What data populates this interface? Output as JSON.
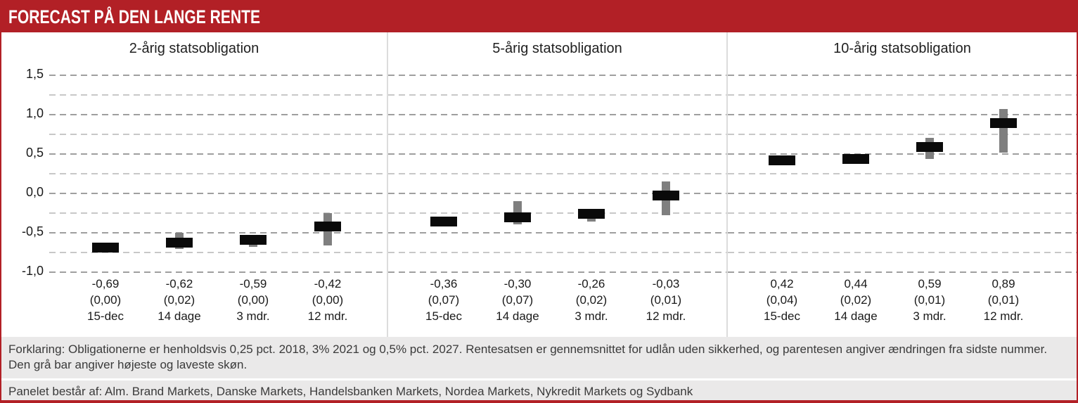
{
  "header": {
    "title": "FORECAST PÅ DEN LANGE RENTE"
  },
  "y_axis": {
    "major_ticks": [
      {
        "v": 1.5,
        "label": "1,5"
      },
      {
        "v": 1.0,
        "label": "1,0"
      },
      {
        "v": 0.5,
        "label": "0,5"
      },
      {
        "v": 0.0,
        "label": "0,0"
      },
      {
        "v": -0.5,
        "label": "-0,5"
      },
      {
        "v": -1.0,
        "label": "-1,0"
      }
    ],
    "grid_values": [
      1.5,
      1.25,
      1.0,
      0.75,
      0.5,
      0.25,
      0.0,
      -0.25,
      -0.5,
      -0.75,
      -1.0
    ]
  },
  "chart_data": [
    {
      "type": "range-bar",
      "title": "2-årig statsobligation",
      "ylim": [
        -1.0,
        1.5
      ],
      "grid_step": 0.25,
      "points": [
        {
          "period": "15-dec",
          "value": -0.69,
          "value_label": "-0,69",
          "change_label": "(0,00)",
          "range_high": null,
          "range_low": null
        },
        {
          "period": "14 dage",
          "value": -0.62,
          "value_label": "-0,62",
          "change_label": "(0,02)",
          "range_high": -0.5,
          "range_low": -0.7
        },
        {
          "period": "3 mdr.",
          "value": -0.59,
          "value_label": "-0,59",
          "change_label": "(0,00)",
          "range_high": -0.56,
          "range_low": -0.68
        },
        {
          "period": "12 mdr.",
          "value": -0.42,
          "value_label": "-0,42",
          "change_label": "(0,00)",
          "range_high": -0.25,
          "range_low": -0.66
        }
      ]
    },
    {
      "type": "range-bar",
      "title": "5-årig statsobligation",
      "ylim": [
        -1.0,
        1.5
      ],
      "grid_step": 0.25,
      "points": [
        {
          "period": "15-dec",
          "value": -0.36,
          "value_label": "-0,36",
          "change_label": "(0,07)",
          "range_high": null,
          "range_low": null
        },
        {
          "period": "14 dage",
          "value": -0.3,
          "value_label": "-0,30",
          "change_label": "(0,07)",
          "range_high": -0.1,
          "range_low": -0.39
        },
        {
          "period": "3 mdr.",
          "value": -0.26,
          "value_label": "-0,26",
          "change_label": "(0,02)",
          "range_high": -0.22,
          "range_low": -0.36
        },
        {
          "period": "12 mdr.",
          "value": -0.03,
          "value_label": "-0,03",
          "change_label": "(0,01)",
          "range_high": 0.15,
          "range_low": -0.28
        }
      ]
    },
    {
      "type": "range-bar",
      "title": "10-årig statsobligation",
      "ylim": [
        -1.0,
        1.5
      ],
      "grid_step": 0.25,
      "points": [
        {
          "period": "15-dec",
          "value": 0.42,
          "value_label": "0,42",
          "change_label": "(0,04)",
          "range_high": null,
          "range_low": null
        },
        {
          "period": "14 dage",
          "value": 0.44,
          "value_label": "0,44",
          "change_label": "(0,02)",
          "range_high": null,
          "range_low": null
        },
        {
          "period": "3 mdr.",
          "value": 0.59,
          "value_label": "0,59",
          "change_label": "(0,01)",
          "range_high": 0.7,
          "range_low": 0.44
        },
        {
          "period": "12 mdr.",
          "value": 0.89,
          "value_label": "0,89",
          "change_label": "(0,01)",
          "range_high": 1.07,
          "range_low": 0.52
        }
      ]
    }
  ],
  "footer": {
    "forklaring": "Forklaring: Obligationerne er henholdsvis 0,25 pct. 2018, 3% 2021 og 0,5% pct. 2027. Rentesatsen er gennemsnittet for udlån uden sikkerhed, og parentesen angiver ændringen fra sidste nummer. Den grå bar angiver højeste og laveste skøn.",
    "panel_line": "Panelet består af: Alm. Brand Markets, Danske Markets, Handelsbanken Markets, Nordea Markets, Nykredit Markets og Sydbank"
  },
  "colors": {
    "accent_red": "#b22026",
    "bar_black": "#0a0a0a",
    "range_gray": "#7f7f7f",
    "grid_major": "#9f9f9f",
    "grid_minor": "#c8c8c8",
    "footer_bg": "#eae9e9"
  }
}
